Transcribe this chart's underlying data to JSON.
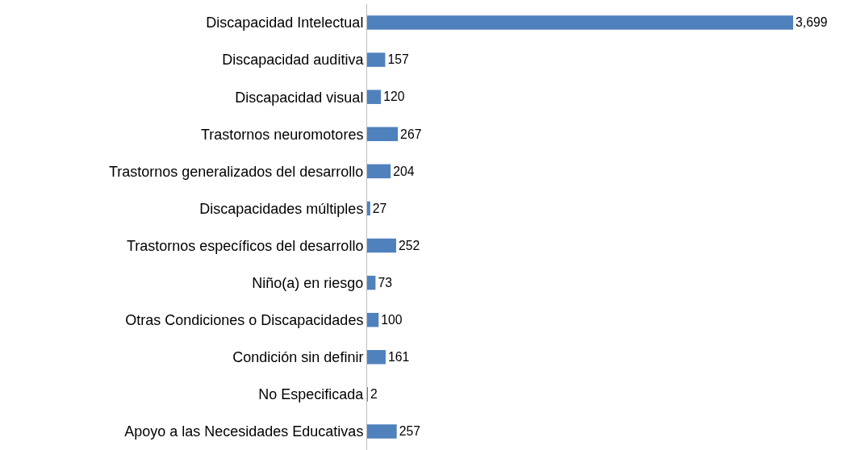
{
  "chart_data": {
    "type": "bar",
    "orientation": "horizontal",
    "categories": [
      "Discapacidad Intelectual",
      "Discapacidad auditiva",
      "Discapacidad visual",
      "Trastornos neuromotores",
      "Trastornos generalizados del desarrollo",
      "Discapacidades múltiples",
      "Trastornos específicos del desarrollo",
      "Niño(a) en riesgo",
      "Otras Condiciones o Discapacidades",
      "Condición sin definir",
      "No Especificada",
      "Apoyo a las Necesidades Educativas"
    ],
    "values": [
      3699,
      157,
      120,
      267,
      204,
      27,
      252,
      73,
      100,
      161,
      2,
      257
    ],
    "value_labels": [
      "3,699",
      "157",
      "120",
      "267",
      "204",
      "27",
      "252",
      "73",
      "100",
      "161",
      "2",
      "257"
    ],
    "color": "#4f81bd",
    "grid": false,
    "legend": false
  }
}
